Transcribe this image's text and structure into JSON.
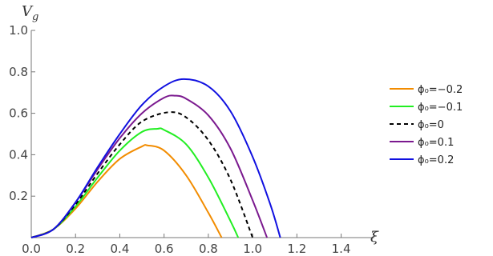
{
  "chart_data": {
    "type": "line",
    "title": "",
    "xlabel": "ξ",
    "ylabel": "V",
    "ylabel_sub": "g",
    "xlim": [
      0.0,
      1.55
    ],
    "ylim": [
      0.0,
      1.0
    ],
    "x_ticks": [
      0.0,
      0.2,
      0.4,
      0.6,
      0.8,
      1.0,
      1.2,
      1.4
    ],
    "x_tick_labels": [
      "0.0",
      "0.2",
      "0.4",
      "0.6",
      "0.8",
      "1.0",
      "1.2",
      "1.4"
    ],
    "y_ticks": [
      0.2,
      0.4,
      0.6,
      0.8,
      1.0
    ],
    "y_tick_labels": [
      "0.2",
      "0.4",
      "0.6",
      "0.8",
      "1.0"
    ],
    "grid": false,
    "legend_position": "right",
    "series": [
      {
        "name": "ϕ₀=−0.2",
        "color": "#f28c00",
        "dash": "solid",
        "x": [
          0.0,
          0.1,
          0.2,
          0.3,
          0.4,
          0.5,
          0.525,
          0.6,
          0.7,
          0.8,
          0.86
        ],
        "y": [
          0.0,
          0.04,
          0.14,
          0.27,
          0.38,
          0.44,
          0.445,
          0.42,
          0.3,
          0.12,
          0.0
        ]
      },
      {
        "name": "ϕ₀=−0.1",
        "color": "#22ee22",
        "dash": "solid",
        "x": [
          0.0,
          0.1,
          0.2,
          0.3,
          0.4,
          0.5,
          0.57,
          0.6,
          0.7,
          0.8,
          0.9,
          0.935
        ],
        "y": [
          0.0,
          0.04,
          0.15,
          0.29,
          0.42,
          0.51,
          0.525,
          0.52,
          0.45,
          0.29,
          0.08,
          0.0
        ]
      },
      {
        "name": "ϕ₀=0",
        "color": "#000000",
        "dash": "dashed",
        "x": [
          0.0,
          0.1,
          0.2,
          0.3,
          0.4,
          0.5,
          0.62,
          0.7,
          0.8,
          0.9,
          1.0
        ],
        "y": [
          0.0,
          0.04,
          0.16,
          0.31,
          0.45,
          0.56,
          0.605,
          0.58,
          0.47,
          0.28,
          0.0
        ]
      },
      {
        "name": "ϕ₀=0.1",
        "color": "#7b1a8f",
        "dash": "solid",
        "x": [
          0.0,
          0.1,
          0.2,
          0.3,
          0.4,
          0.5,
          0.6,
          0.65,
          0.7,
          0.8,
          0.9,
          1.0,
          1.065
        ],
        "y": [
          0.0,
          0.04,
          0.17,
          0.33,
          0.48,
          0.6,
          0.675,
          0.685,
          0.67,
          0.59,
          0.43,
          0.18,
          0.0
        ]
      },
      {
        "name": "ϕ₀=0.2",
        "color": "#1010e0",
        "dash": "solid",
        "x": [
          0.0,
          0.1,
          0.2,
          0.3,
          0.4,
          0.5,
          0.6,
          0.69,
          0.8,
          0.9,
          1.0,
          1.08,
          1.125
        ],
        "y": [
          0.0,
          0.04,
          0.17,
          0.34,
          0.5,
          0.64,
          0.73,
          0.765,
          0.73,
          0.61,
          0.39,
          0.16,
          0.0
        ]
      }
    ]
  }
}
